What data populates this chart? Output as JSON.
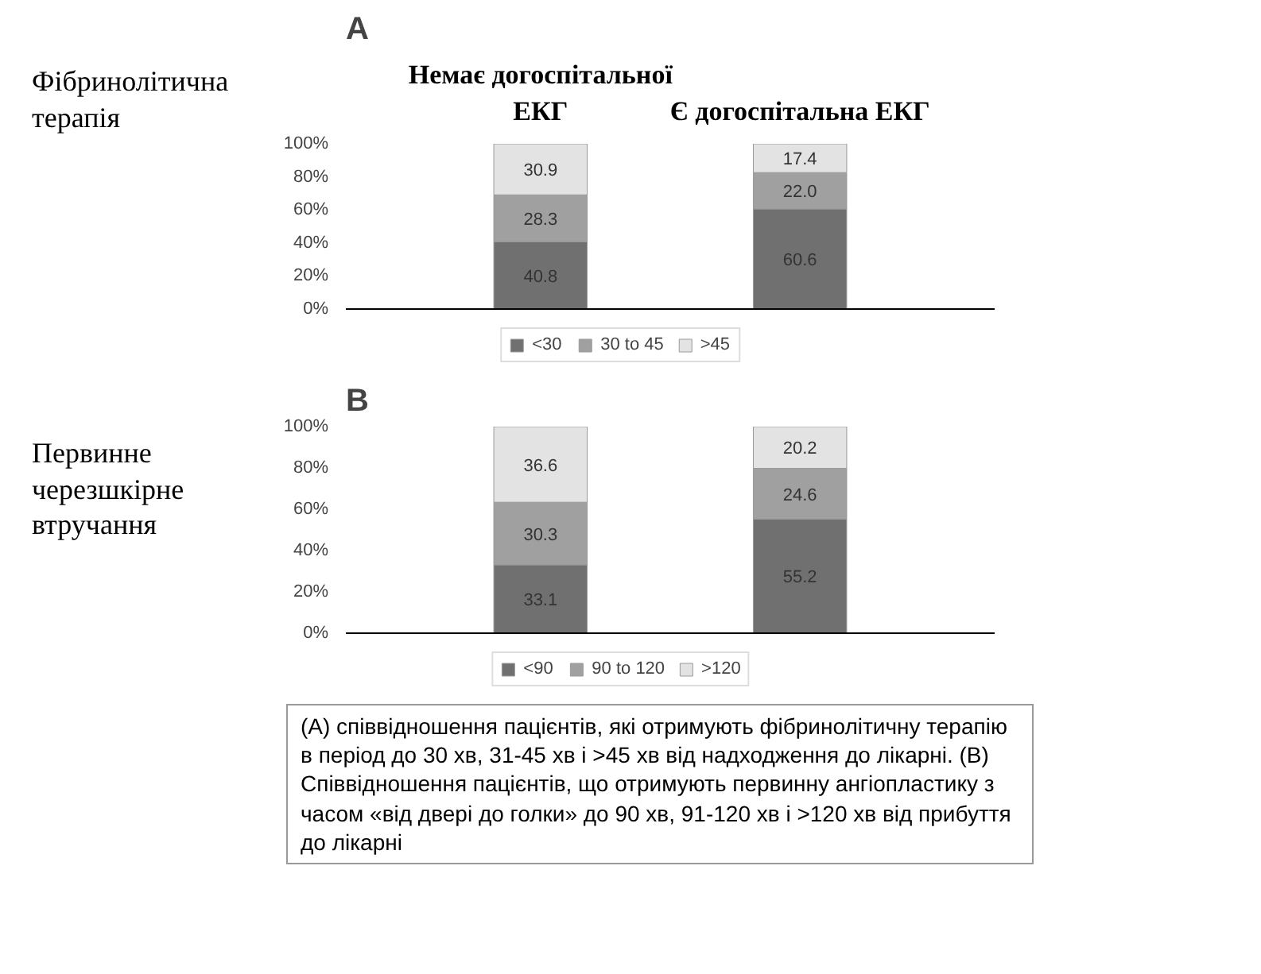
{
  "chart_data": [
    {
      "type": "bar",
      "title": "A",
      "ylabel": "Фібринолітична терапія",
      "categories": [
        "Немає догоспітальної ЕКГ",
        "Є догоспітальна ЕКГ"
      ],
      "stacked": true,
      "series": [
        {
          "name": "<30",
          "color": "#707070",
          "values": [
            40.8,
            60.6
          ],
          "value_labels": [
            "40.8",
            "60.6"
          ]
        },
        {
          "name": "30 to 45",
          "color": "#a0a0a0",
          "values": [
            28.3,
            22.0
          ],
          "value_labels": [
            "28.3",
            "22.0"
          ]
        },
        {
          "name": ">45",
          "color": "#e3e3e3",
          "values": [
            30.9,
            17.4
          ],
          "value_labels": [
            "30.9",
            "17.4"
          ]
        }
      ],
      "ylim": [
        0,
        100
      ],
      "yticks": [
        {
          "value": 0,
          "label": "0%"
        },
        {
          "value": 20,
          "label": "20%"
        },
        {
          "value": 40,
          "label": "40%"
        },
        {
          "value": 60,
          "label": "60%"
        },
        {
          "value": 80,
          "label": "80%"
        },
        {
          "value": 100,
          "label": "100%"
        }
      ],
      "grid": false,
      "legend": "bottom",
      "data_labels": true
    },
    {
      "type": "bar",
      "title": "B",
      "ylabel": "Первинне черезшкірне втручання",
      "categories": [
        null,
        null
      ],
      "stacked": true,
      "series": [
        {
          "name": "<90",
          "color": "#707070",
          "values": [
            33.1,
            55.2
          ],
          "value_labels": [
            "33.1",
            "55.2"
          ]
        },
        {
          "name": "90 to 120",
          "color": "#a0a0a0",
          "values": [
            30.3,
            24.6
          ],
          "value_labels": [
            "30.3",
            "24.6"
          ]
        },
        {
          "name": ">120",
          "color": "#e3e3e3",
          "values": [
            36.6,
            20.2
          ],
          "value_labels": [
            "36.6",
            "20.2"
          ]
        }
      ],
      "ylim": [
        0,
        100
      ],
      "yticks": [
        {
          "value": 0,
          "label": "0%"
        },
        {
          "value": 20,
          "label": "20%"
        },
        {
          "value": 40,
          "label": "40%"
        },
        {
          "value": 60,
          "label": "60%"
        },
        {
          "value": 80,
          "label": "80%"
        },
        {
          "value": 100,
          "label": "100%"
        }
      ],
      "grid": false,
      "legend": "bottom",
      "tick_labels": "y",
      "data_labels": true,
      "annotations": [
        "(A) співвідношення пацієнтів, які отримують фібринолітичну терапію в період до 30 хв, 31-45 хв і >45 хв від надходження до лікарні. (B) Співвідношення пацієнтів, що отримують первинну ангіопластику з часом «від двері до голки» до 90 хв, 91-120 хв і >120 хв від прибуття до лікарні"
      ]
    }
  ]
}
